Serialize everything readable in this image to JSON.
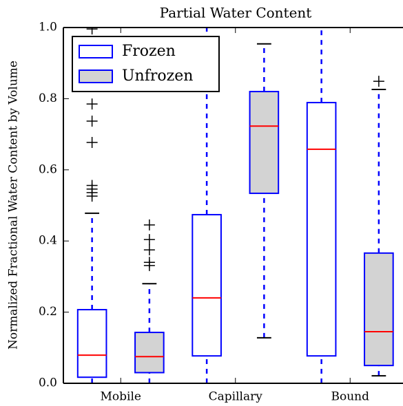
{
  "chart_data": {
    "type": "box",
    "title": "Partial Water Content",
    "y_label": "Normalized Fractional Water Content by Volume",
    "categories": [
      "Mobile",
      "Capillary",
      "Bound"
    ],
    "xlim": [
      0.5,
      3.5
    ],
    "ylim": [
      0,
      1
    ],
    "yticks": [
      {
        "value": 0,
        "label": "0.0"
      },
      0.2,
      0.4,
      0.6,
      0.8,
      {
        "value": 1,
        "label": "1.0"
      }
    ],
    "legend": "upper left",
    "edge_color": "#0000ff",
    "median_color": "#ff0000",
    "series": [
      {
        "name": "Frozen",
        "color": "#ffffff",
        "values": [
          {
            "low": 0.0,
            "q1": 0.017,
            "median": 0.079,
            "q3": 0.207,
            "high": 0.478,
            "fliers": [
              0.996,
              0.785,
              0.737,
              0.677,
              0.556,
              0.546,
              0.536,
              0.526
            ]
          },
          {
            "low": 0.0,
            "q1": 0.077,
            "median": 0.24,
            "q3": 0.474,
            "high": 1.0,
            "fliers": []
          },
          {
            "low": 0.0,
            "q1": 0.077,
            "median": 0.658,
            "q3": 0.789,
            "high": 1.0,
            "fliers": []
          }
        ]
      },
      {
        "name": "Unfrozen",
        "color": "#d3d3d3",
        "values": [
          {
            "low": 0.0,
            "q1": 0.03,
            "median": 0.075,
            "q3": 0.143,
            "high": 0.28,
            "fliers": [
              0.445,
              0.404,
              0.375,
              0.34,
              0.331
            ]
          },
          {
            "low": 0.128,
            "q1": 0.534,
            "median": 0.723,
            "q3": 0.82,
            "high": 0.954,
            "fliers": []
          },
          {
            "low": 0.021,
            "q1": 0.05,
            "median": 0.145,
            "q3": 0.366,
            "high": 0.826,
            "fliers": [
              0.849
            ]
          }
        ]
      }
    ]
  }
}
